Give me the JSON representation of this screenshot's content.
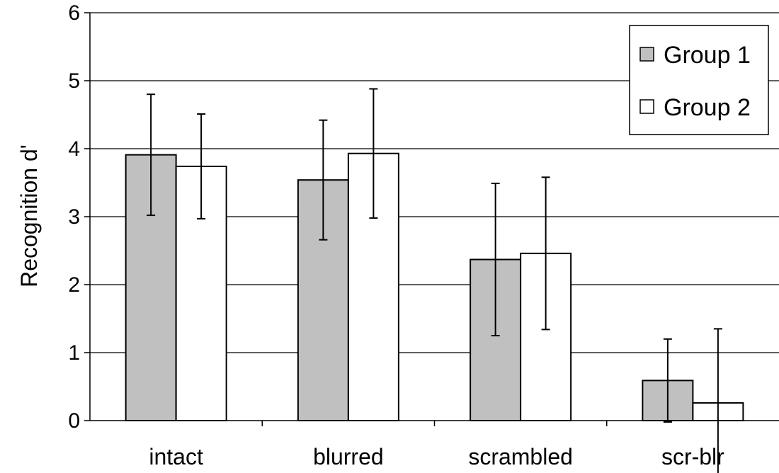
{
  "chart_data": {
    "type": "bar",
    "title": "",
    "xlabel": "",
    "ylabel": "Recognition d'",
    "ylim": [
      0,
      6
    ],
    "yticks": [
      0,
      1,
      2,
      3,
      4,
      5,
      6
    ],
    "grid": true,
    "legend_position": "top-right",
    "categories": [
      "intact",
      "blurred",
      "scrambled",
      "scr-blr"
    ],
    "series": [
      {
        "name": "Group 1",
        "color": "#c0c0c0",
        "values": [
          3.91,
          3.54,
          2.37,
          0.59
        ],
        "errors": [
          0.89,
          0.88,
          1.12,
          0.61
        ]
      },
      {
        "name": "Group 2",
        "color": "#ffffff",
        "values": [
          3.74,
          3.93,
          2.46,
          0.26
        ],
        "errors": [
          0.77,
          0.95,
          1.12,
          1.09
        ]
      }
    ]
  }
}
